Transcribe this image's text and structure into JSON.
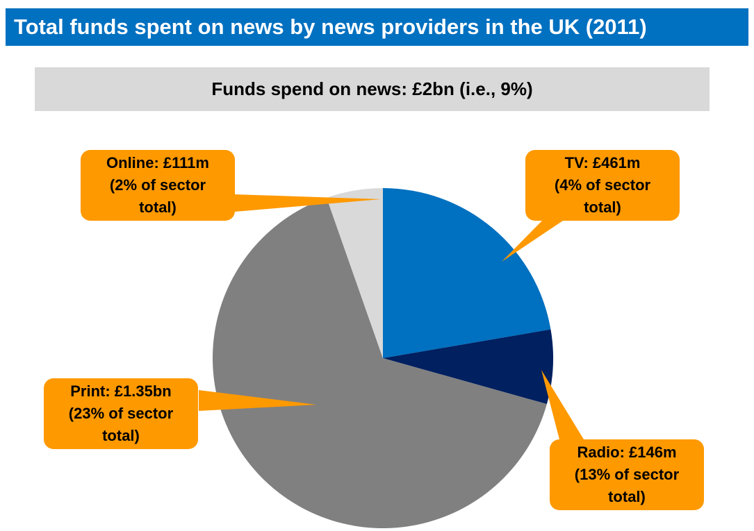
{
  "chart_data": {
    "type": "pie",
    "title": "Total funds spent on news by news providers in the UK (2011)",
    "subtitle": "Funds spend on news: £2bn (i.e., 9%)",
    "unit": "£m",
    "slices": [
      {
        "name": "TV",
        "value": 461,
        "color": "#0070C0",
        "label": [
          "TV: £461m",
          "(4% of sector",
          "total)"
        ]
      },
      {
        "name": "Radio",
        "value": 146,
        "color": "#002060",
        "label": [
          "Radio: £146m",
          "(13% of sector",
          "total)"
        ]
      },
      {
        "name": "Print",
        "value": 1350,
        "color": "#808080",
        "label": [
          "Print: £1.35bn",
          "(23% of sector",
          "total)"
        ]
      },
      {
        "name": "Online",
        "value": 111,
        "color": "#D9D9D9",
        "label": [
          "Online: £111m",
          "(2% of sector",
          "total)"
        ]
      }
    ],
    "callout_color": "#FF9900"
  }
}
